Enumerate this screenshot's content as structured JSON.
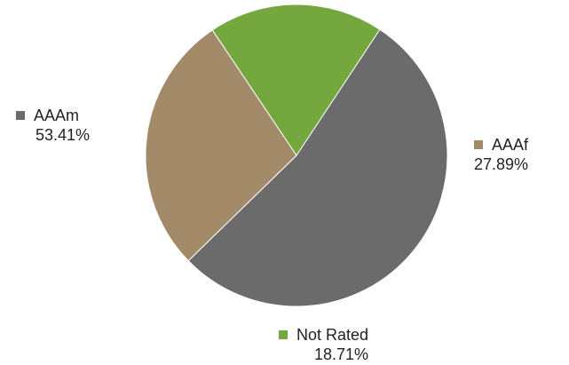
{
  "chart_data": {
    "type": "pie",
    "title": "",
    "legend": "none",
    "slices": [
      {
        "label": "AAAm",
        "value": 53.41,
        "display": "53.41%",
        "color": "#6b6b6b"
      },
      {
        "label": "AAAf",
        "value": 27.89,
        "display": "27.89%",
        "color": "#a38b6a"
      },
      {
        "label": "Not Rated",
        "value": 18.71,
        "display": "18.71%",
        "color": "#74a73e"
      }
    ]
  }
}
